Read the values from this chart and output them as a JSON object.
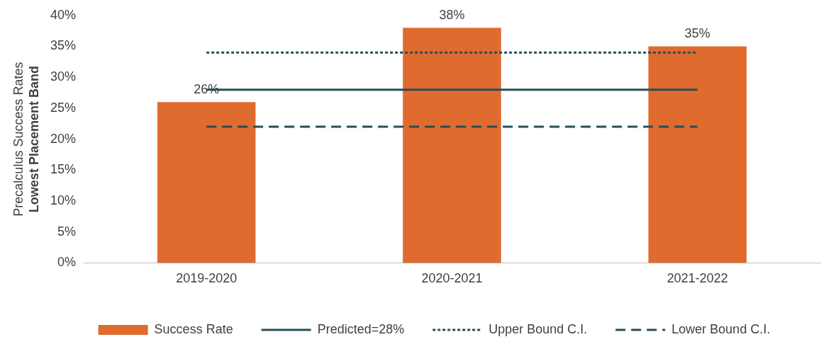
{
  "chart_data": {
    "type": "bar",
    "ylabel": "Precalculus Success Rates\nLowest Placement Band",
    "categories": [
      "2019-2020",
      "2020-2021",
      "2021-2022"
    ],
    "series": [
      {
        "name": "Success Rate",
        "color": "#e06b2e",
        "values": [
          26,
          38,
          35
        ],
        "value_labels": [
          "26%",
          "38%",
          "35%"
        ]
      },
      {
        "name": "Predicted=28%",
        "type": "line",
        "color": "#264d5a",
        "line_style": "solid",
        "values": [
          28,
          28,
          28
        ]
      },
      {
        "name": "Upper Bound C.I.",
        "type": "line",
        "color": "#264d5a",
        "line_style": "dotted",
        "values": [
          34,
          34,
          34
        ]
      },
      {
        "name": "Lower Bound C.I.",
        "type": "line",
        "color": "#264d5a",
        "line_style": "dashed",
        "values": [
          22,
          22,
          22
        ]
      }
    ],
    "ylim": [
      0,
      40
    ],
    "yticks": [
      {
        "value": 0,
        "label": "0%"
      },
      {
        "value": 5,
        "label": "5%"
      },
      {
        "value": 10,
        "label": "10%"
      },
      {
        "value": 15,
        "label": "15%"
      },
      {
        "value": 20,
        "label": "20%"
      },
      {
        "value": 25,
        "label": "25%"
      },
      {
        "value": 30,
        "label": "30%"
      },
      {
        "value": 35,
        "label": "35%"
      },
      {
        "value": 40,
        "label": "40%"
      }
    ],
    "grid": false,
    "legend": "bottom",
    "marker": "none"
  }
}
